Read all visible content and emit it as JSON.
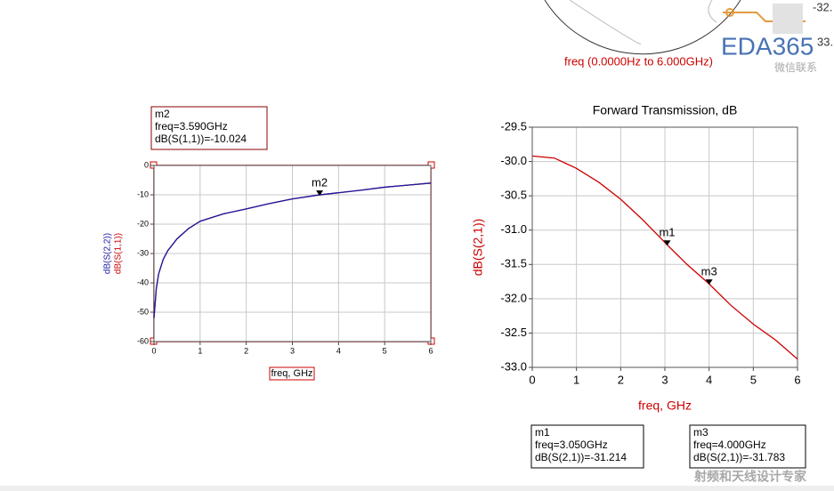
{
  "smith": {
    "freq_range": "freq (0.0000Hz to 6.000GHz)",
    "edge_labels": [
      "-32.",
      "33."
    ]
  },
  "watermark": {
    "logo": "EDA365",
    "contact": "微信联系",
    "slogan": "射频和天线设计专家"
  },
  "chart_data": [
    {
      "type": "line",
      "xlabel": "freq, GHz",
      "x": [
        0,
        0.05,
        0.1,
        0.2,
        0.3,
        0.5,
        0.75,
        1,
        1.5,
        2,
        2.5,
        3,
        3.59,
        4,
        4.5,
        5,
        5.5,
        6
      ],
      "series": [
        {
          "name": "dB(S(1,1))",
          "color": "#cc0000",
          "values": [
            -52,
            -42,
            -37,
            -32,
            -29,
            -25,
            -21.5,
            -19,
            -16.5,
            -14.8,
            -13,
            -11.4,
            -10.024,
            -9.3,
            -8.4,
            -7.4,
            -6.7,
            -6
          ]
        },
        {
          "name": "dB(S(2,2))",
          "color": "#1a1aa6",
          "values": [
            -52,
            -42,
            -37,
            -32,
            -29,
            -25,
            -21.5,
            -19,
            -16.5,
            -14.8,
            -13,
            -11.4,
            -10.024,
            -9.3,
            -8.4,
            -7.4,
            -6.7,
            -6
          ]
        }
      ],
      "xlim": [
        0,
        6
      ],
      "xticks": [
        0,
        1,
        2,
        3,
        4,
        5,
        6
      ],
      "ylim": [
        -60,
        0
      ],
      "yticks": [
        -60,
        -50,
        -40,
        -30,
        -20,
        -10,
        0
      ],
      "grid": true,
      "markers": [
        {
          "name": "m2",
          "x": 3.59,
          "y": -10.024,
          "readout": [
            "freq=3.590GHz",
            "dB(S(1,1))=-10.024"
          ]
        }
      ]
    },
    {
      "type": "line",
      "title": "Forward Transmission, dB",
      "xlabel": "freq, GHz",
      "ylabel": "dB(S(2,1))",
      "x": [
        0,
        0.5,
        1,
        1.5,
        2,
        2.5,
        3,
        3.05,
        3.5,
        4,
        4.5,
        5,
        5.5,
        6
      ],
      "series": [
        {
          "color": "#cc0000",
          "values": [
            -29.92,
            -29.95,
            -30.1,
            -30.3,
            -30.55,
            -30.85,
            -31.18,
            -31.214,
            -31.5,
            -31.783,
            -32.1,
            -32.37,
            -32.6,
            -32.88
          ]
        }
      ],
      "xlim": [
        0,
        6
      ],
      "xticks": [
        0,
        1,
        2,
        3,
        4,
        5,
        6
      ],
      "ylim": [
        -33,
        -29.5
      ],
      "yticks": [
        {
          "value": -33,
          "label": "-33.0"
        },
        {
          "value": -32.5,
          "label": "-32.5"
        },
        {
          "value": -32,
          "label": "-32.0"
        },
        {
          "value": -31.5,
          "label": "-31.5"
        },
        {
          "value": -31,
          "label": "-31.0"
        },
        {
          "value": -30.5,
          "label": "-30.5"
        },
        {
          "value": -30,
          "label": "-30.0"
        },
        {
          "value": -29.5,
          "label": "-29.5"
        }
      ],
      "grid": true,
      "markers": [
        {
          "name": "m1",
          "x": 3.05,
          "y": -31.214,
          "readout": [
            "freq=3.050GHz",
            "dB(S(2,1))=-31.214"
          ]
        },
        {
          "name": "m3",
          "x": 4,
          "y": -31.783,
          "readout": [
            "freq=4.000GHz",
            "dB(S(2,1))=-31.783"
          ]
        }
      ]
    }
  ]
}
